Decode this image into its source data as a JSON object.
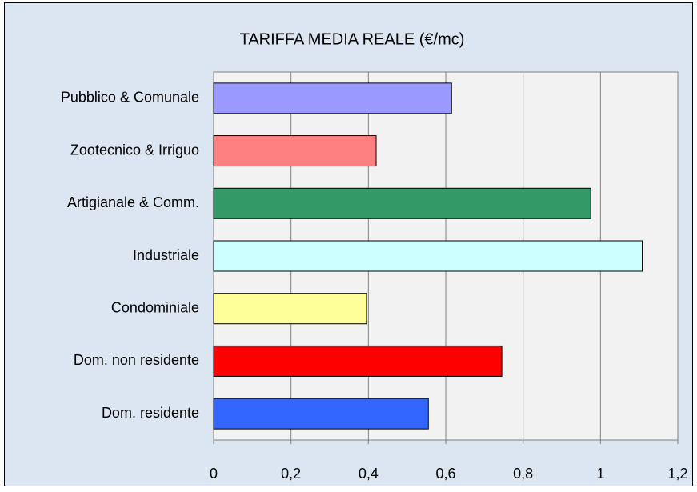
{
  "chart_data": {
    "type": "hbar",
    "title": "TARIFFA MEDIA REALE (€/mc)",
    "categories": [
      "Pubblico & Comunale",
      "Zootecnico & Irriguo",
      "Artigianale & Comm.",
      "Industriale",
      "Condominiale",
      "Dom. non residente",
      "Dom. residente"
    ],
    "values": [
      0.615,
      0.42,
      0.975,
      1.108,
      0.395,
      0.745,
      0.555
    ],
    "colors": [
      "#9999ff",
      "#ff8080",
      "#339966",
      "#ccffff",
      "#ffff99",
      "#ff0000",
      "#3366ff"
    ],
    "xlim": [
      0,
      1.2
    ],
    "xticks": [
      0,
      {
        "value": 0.2,
        "label": "0,2"
      },
      {
        "value": 0.4,
        "label": "0,4"
      },
      {
        "value": 0.6,
        "label": "0,6"
      },
      {
        "value": 0.8,
        "label": "0,8"
      },
      1,
      {
        "value": 1.2,
        "label": "1,2"
      }
    ],
    "grid": true
  }
}
